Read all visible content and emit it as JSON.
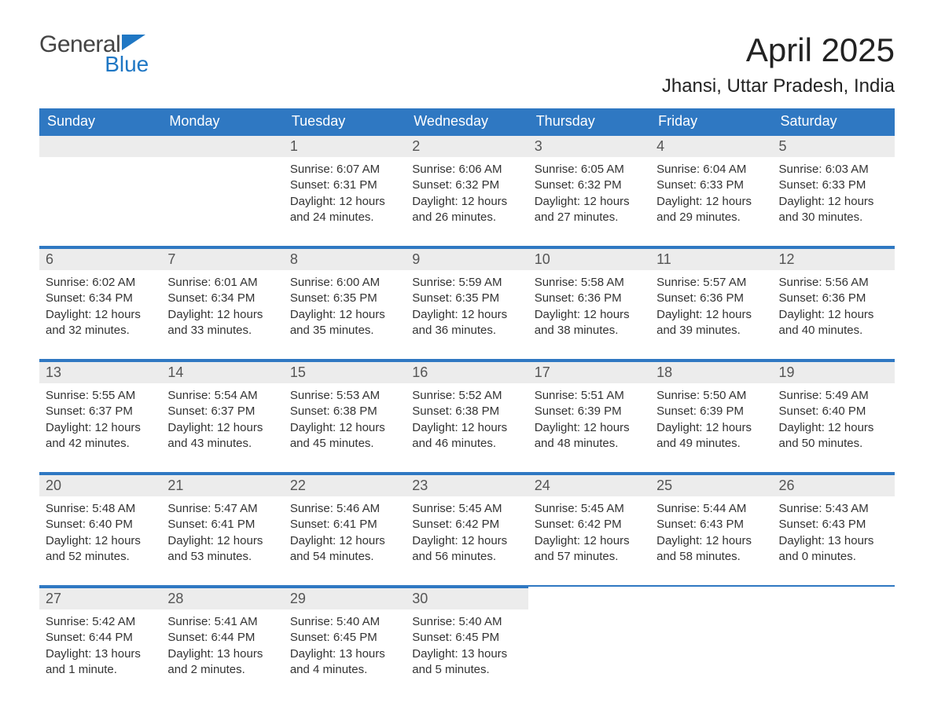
{
  "branding": {
    "word1": "General",
    "word2": "Blue",
    "general_color": "#444444",
    "blue_color": "#1f77c4",
    "triangle_color": "#1f77c4"
  },
  "header": {
    "month_title": "April 2025",
    "location": "Jhansi, Uttar Pradesh, India",
    "title_fontsize": 42,
    "location_fontsize": 24,
    "title_color": "#222222"
  },
  "style": {
    "header_bg": "#2f78c2",
    "header_text": "#ffffff",
    "daynum_bg": "#ececec",
    "daynum_color": "#555555",
    "row_border": "#2f78c2",
    "body_text": "#333333",
    "page_bg": "#ffffff",
    "weekday_fontsize": 18,
    "daynum_fontsize": 18,
    "data_fontsize": 15
  },
  "weekdays": [
    "Sunday",
    "Monday",
    "Tuesday",
    "Wednesday",
    "Thursday",
    "Friday",
    "Saturday"
  ],
  "weeks": [
    [
      null,
      null,
      {
        "n": "1",
        "sunrise": "6:07 AM",
        "sunset": "6:31 PM",
        "daylight": "12 hours and 24 minutes."
      },
      {
        "n": "2",
        "sunrise": "6:06 AM",
        "sunset": "6:32 PM",
        "daylight": "12 hours and 26 minutes."
      },
      {
        "n": "3",
        "sunrise": "6:05 AM",
        "sunset": "6:32 PM",
        "daylight": "12 hours and 27 minutes."
      },
      {
        "n": "4",
        "sunrise": "6:04 AM",
        "sunset": "6:33 PM",
        "daylight": "12 hours and 29 minutes."
      },
      {
        "n": "5",
        "sunrise": "6:03 AM",
        "sunset": "6:33 PM",
        "daylight": "12 hours and 30 minutes."
      }
    ],
    [
      {
        "n": "6",
        "sunrise": "6:02 AM",
        "sunset": "6:34 PM",
        "daylight": "12 hours and 32 minutes."
      },
      {
        "n": "7",
        "sunrise": "6:01 AM",
        "sunset": "6:34 PM",
        "daylight": "12 hours and 33 minutes."
      },
      {
        "n": "8",
        "sunrise": "6:00 AM",
        "sunset": "6:35 PM",
        "daylight": "12 hours and 35 minutes."
      },
      {
        "n": "9",
        "sunrise": "5:59 AM",
        "sunset": "6:35 PM",
        "daylight": "12 hours and 36 minutes."
      },
      {
        "n": "10",
        "sunrise": "5:58 AM",
        "sunset": "6:36 PM",
        "daylight": "12 hours and 38 minutes."
      },
      {
        "n": "11",
        "sunrise": "5:57 AM",
        "sunset": "6:36 PM",
        "daylight": "12 hours and 39 minutes."
      },
      {
        "n": "12",
        "sunrise": "5:56 AM",
        "sunset": "6:36 PM",
        "daylight": "12 hours and 40 minutes."
      }
    ],
    [
      {
        "n": "13",
        "sunrise": "5:55 AM",
        "sunset": "6:37 PM",
        "daylight": "12 hours and 42 minutes."
      },
      {
        "n": "14",
        "sunrise": "5:54 AM",
        "sunset": "6:37 PM",
        "daylight": "12 hours and 43 minutes."
      },
      {
        "n": "15",
        "sunrise": "5:53 AM",
        "sunset": "6:38 PM",
        "daylight": "12 hours and 45 minutes."
      },
      {
        "n": "16",
        "sunrise": "5:52 AM",
        "sunset": "6:38 PM",
        "daylight": "12 hours and 46 minutes."
      },
      {
        "n": "17",
        "sunrise": "5:51 AM",
        "sunset": "6:39 PM",
        "daylight": "12 hours and 48 minutes."
      },
      {
        "n": "18",
        "sunrise": "5:50 AM",
        "sunset": "6:39 PM",
        "daylight": "12 hours and 49 minutes."
      },
      {
        "n": "19",
        "sunrise": "5:49 AM",
        "sunset": "6:40 PM",
        "daylight": "12 hours and 50 minutes."
      }
    ],
    [
      {
        "n": "20",
        "sunrise": "5:48 AM",
        "sunset": "6:40 PM",
        "daylight": "12 hours and 52 minutes."
      },
      {
        "n": "21",
        "sunrise": "5:47 AM",
        "sunset": "6:41 PM",
        "daylight": "12 hours and 53 minutes."
      },
      {
        "n": "22",
        "sunrise": "5:46 AM",
        "sunset": "6:41 PM",
        "daylight": "12 hours and 54 minutes."
      },
      {
        "n": "23",
        "sunrise": "5:45 AM",
        "sunset": "6:42 PM",
        "daylight": "12 hours and 56 minutes."
      },
      {
        "n": "24",
        "sunrise": "5:45 AM",
        "sunset": "6:42 PM",
        "daylight": "12 hours and 57 minutes."
      },
      {
        "n": "25",
        "sunrise": "5:44 AM",
        "sunset": "6:43 PM",
        "daylight": "12 hours and 58 minutes."
      },
      {
        "n": "26",
        "sunrise": "5:43 AM",
        "sunset": "6:43 PM",
        "daylight": "13 hours and 0 minutes."
      }
    ],
    [
      {
        "n": "27",
        "sunrise": "5:42 AM",
        "sunset": "6:44 PM",
        "daylight": "13 hours and 1 minute."
      },
      {
        "n": "28",
        "sunrise": "5:41 AM",
        "sunset": "6:44 PM",
        "daylight": "13 hours and 2 minutes."
      },
      {
        "n": "29",
        "sunrise": "5:40 AM",
        "sunset": "6:45 PM",
        "daylight": "13 hours and 4 minutes."
      },
      {
        "n": "30",
        "sunrise": "5:40 AM",
        "sunset": "6:45 PM",
        "daylight": "13 hours and 5 minutes."
      },
      null,
      null,
      null
    ]
  ],
  "labels": {
    "sunrise": "Sunrise: ",
    "sunset": "Sunset: ",
    "daylight": "Daylight: "
  }
}
